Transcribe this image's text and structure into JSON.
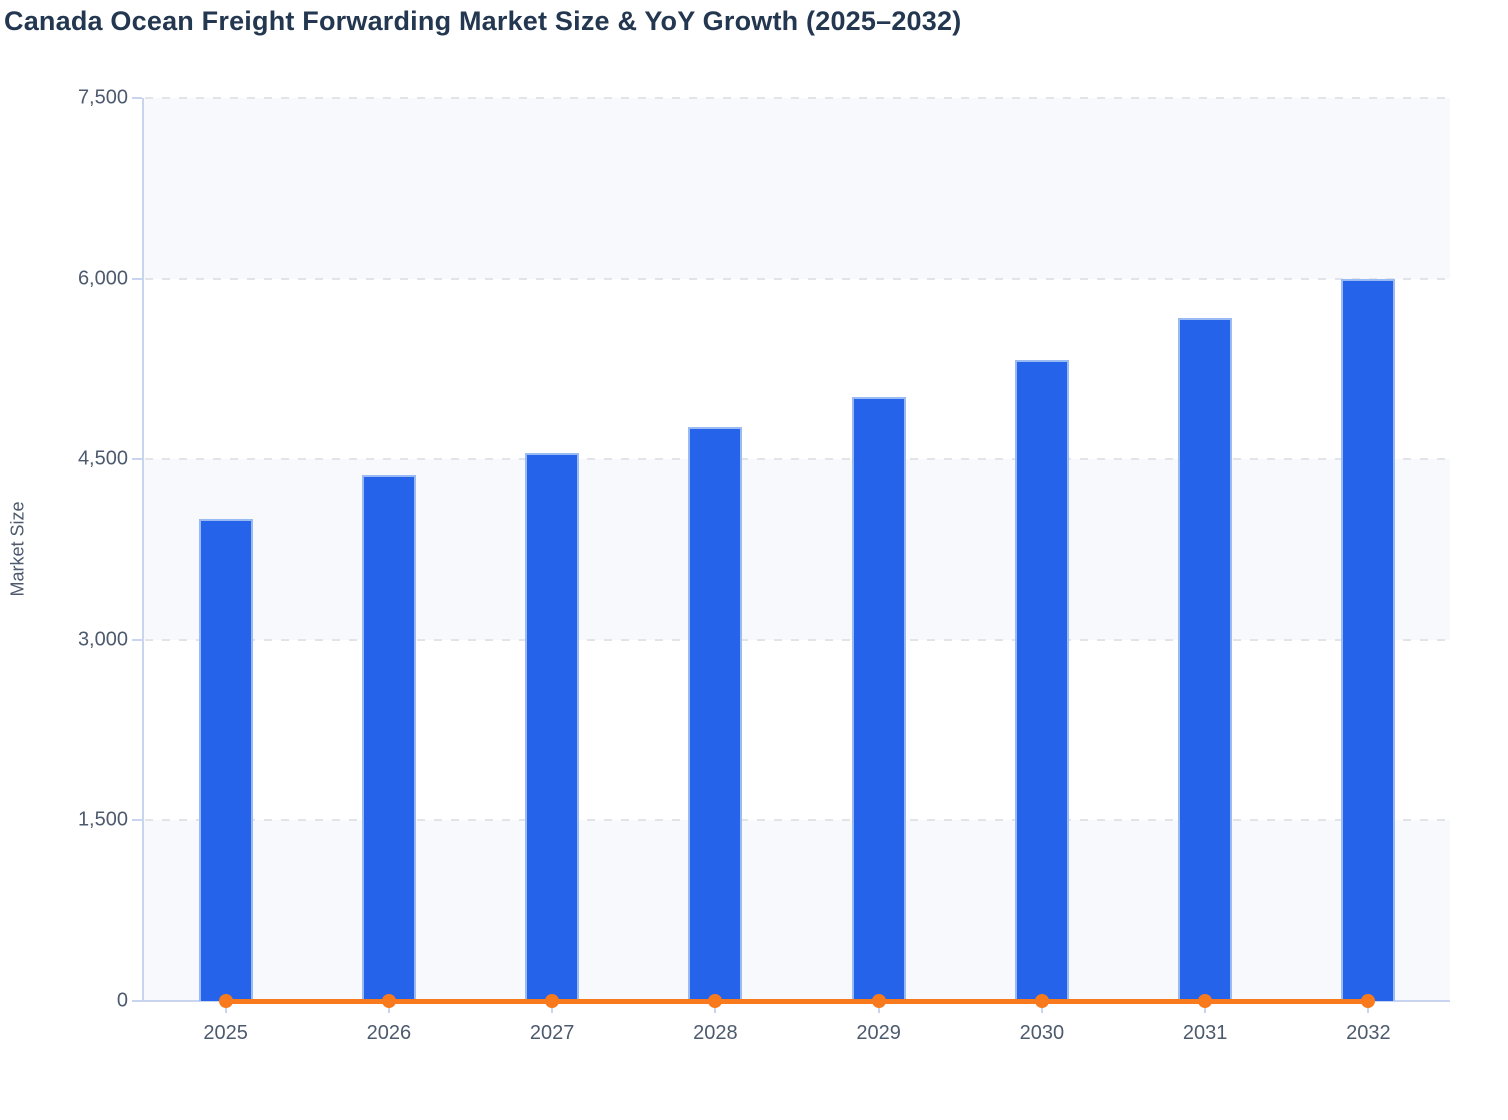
{
  "title": "Canada Ocean Freight Forwarding Market Size & YoY Growth (2025–2032)",
  "colors": {
    "title_text": "#233750",
    "tick_text": "#4d5a6e",
    "bar_fill": "#2563eb",
    "bar_stroke": "#a6c3f3",
    "line_orange": "#f87a1c",
    "axis_line": "#c9d5f0",
    "gridline": "#e2e4ea",
    "band_light": "#f8f9fc",
    "band_white": "#ffffff"
  },
  "chart_data": {
    "type": "bar",
    "title": "Canada Ocean Freight Forwarding Market Size & YoY Growth (2025–2032)",
    "categories": [
      "2025",
      "2026",
      "2027",
      "2028",
      "2029",
      "2030",
      "2031",
      "2032"
    ],
    "series": [
      {
        "name": "Market Size",
        "type": "bar",
        "color": "#2563eb",
        "values": [
          4000,
          4365,
          4555,
          4770,
          5020,
          5320,
          5675,
          6000
        ]
      },
      {
        "name": "YoY Growth",
        "type": "line",
        "color": "#f87a1c",
        "values": [
          0,
          0,
          0,
          0,
          0,
          0,
          0,
          0
        ],
        "note": "line with circular markers renders flat at ~0 on the shared left axis; YoY % magnitudes are unreadable at this scale"
      }
    ],
    "xlabel": "",
    "ylabel": "Market Size",
    "ylim": [
      0,
      7500
    ],
    "ytick_step": 1500,
    "ytick_values": [
      0,
      1500,
      3000,
      4500,
      6000,
      7500
    ],
    "ytick_labels": [
      "0",
      "1,500",
      "3,000",
      "4,500",
      "6,000",
      "7,500"
    ],
    "grid": true,
    "grid_style": "dashed horizontal",
    "legend": false,
    "background_bands": "horizontal bands alternating light (#f8f9fc) and white, light band at top (7500–6000) and bottom (1500–0)"
  }
}
